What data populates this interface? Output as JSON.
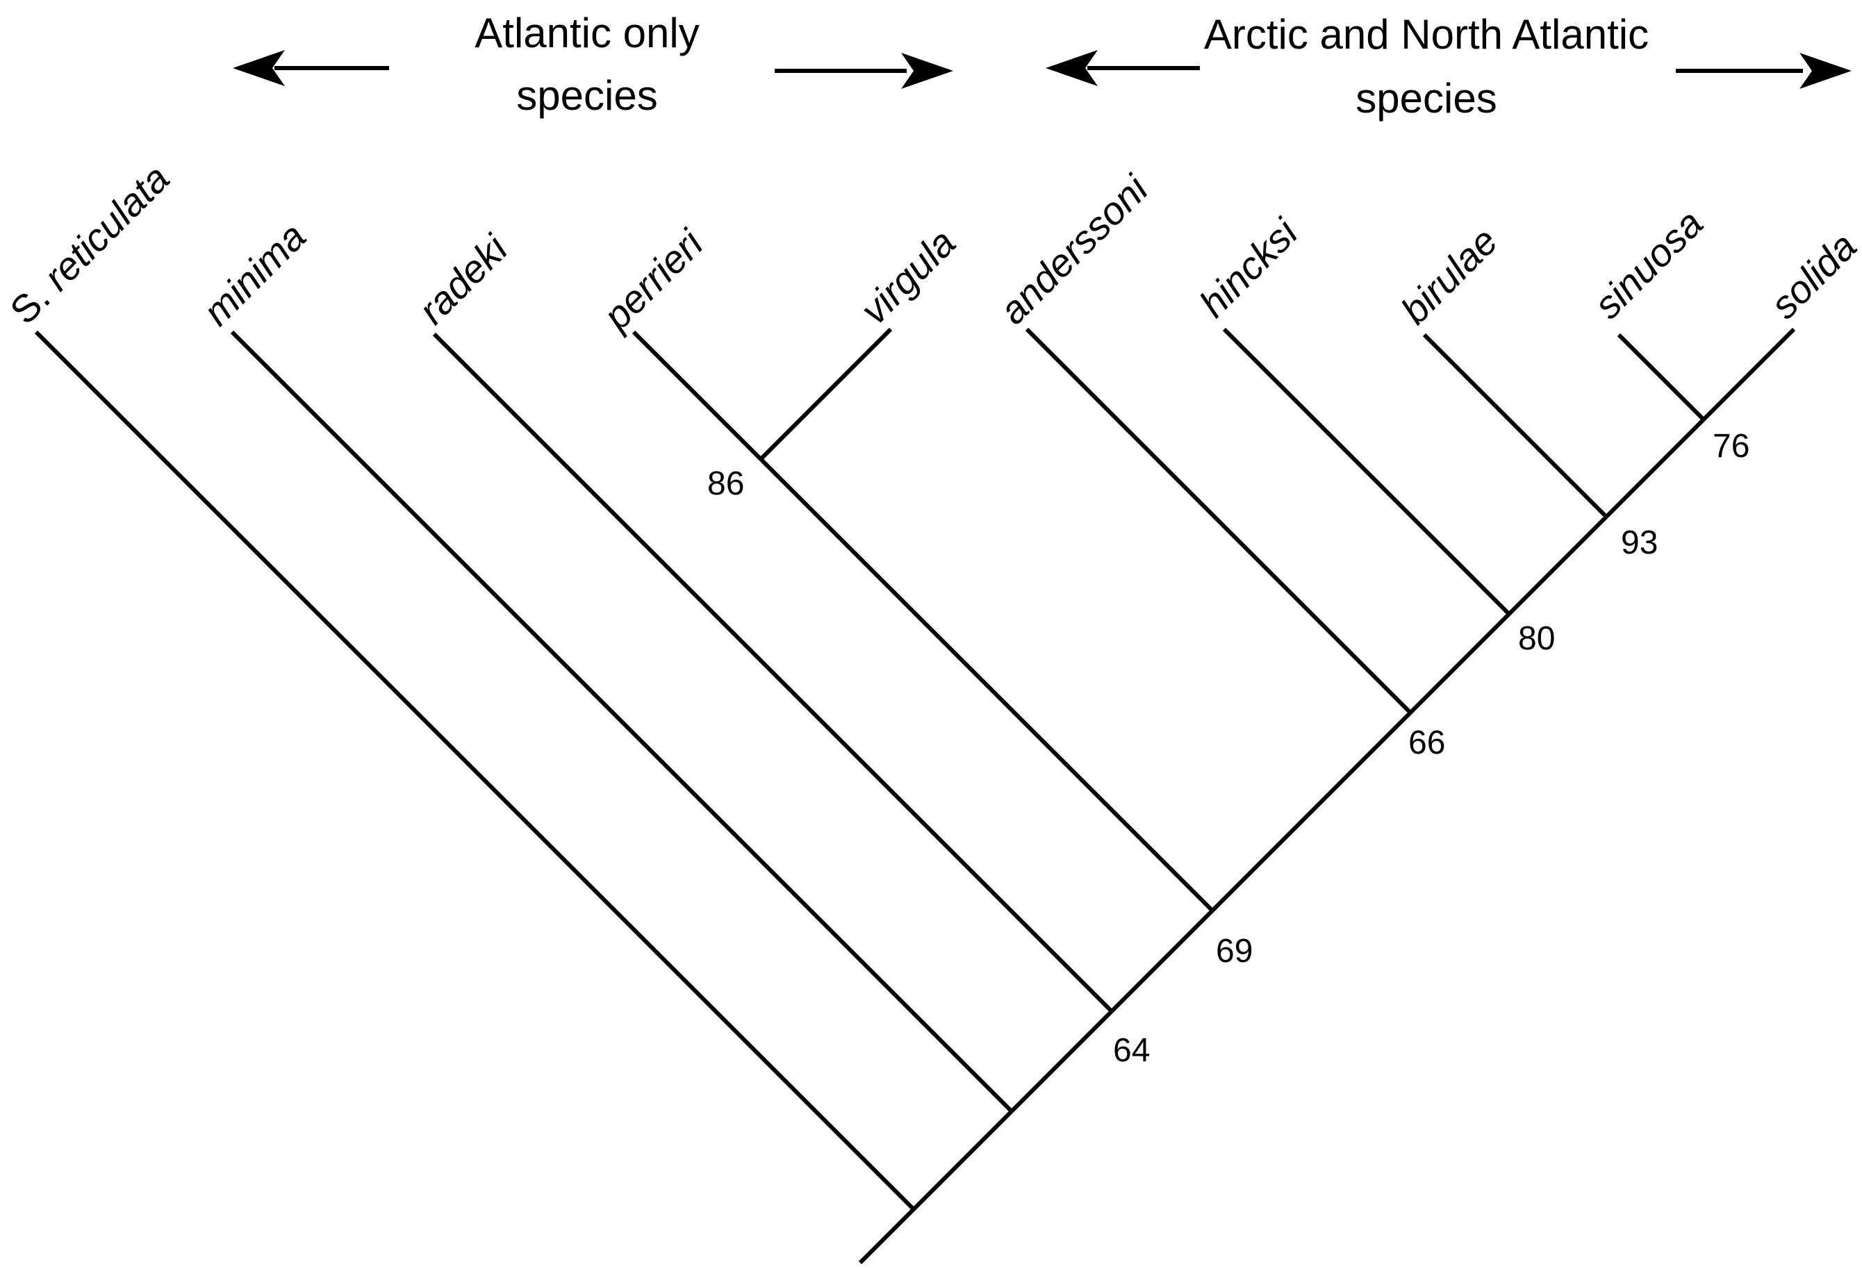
{
  "groups": {
    "atlantic_only": {
      "line1": "Atlantic only",
      "line2": "species"
    },
    "arctic_north_atlantic": {
      "line1": "Arctic and North Atlantic",
      "line2": "species"
    }
  },
  "taxa": [
    {
      "prefix": "S. ",
      "name": "reticulata"
    },
    {
      "prefix": "",
      "name": "minima"
    },
    {
      "prefix": "",
      "name": "radeki"
    },
    {
      "prefix": "",
      "name": "perrieri"
    },
    {
      "prefix": "",
      "name": "virgula"
    },
    {
      "prefix": "",
      "name": "anderssoni"
    },
    {
      "prefix": "",
      "name": "hincksi"
    },
    {
      "prefix": "",
      "name": "birulae"
    },
    {
      "prefix": "",
      "name": "sinuosa"
    },
    {
      "prefix": "",
      "name": "solida"
    }
  ],
  "support_values": {
    "perrieri_virgula": "86",
    "sinuosa_solida": "76",
    "birulae_clade": "93",
    "hincksi_clade": "80",
    "anderssoni_clade": "66",
    "perrieri_virgula_clade": "69",
    "radeki_clade": "64"
  },
  "colors": {
    "ink": "#000000",
    "background": "#ffffff"
  }
}
